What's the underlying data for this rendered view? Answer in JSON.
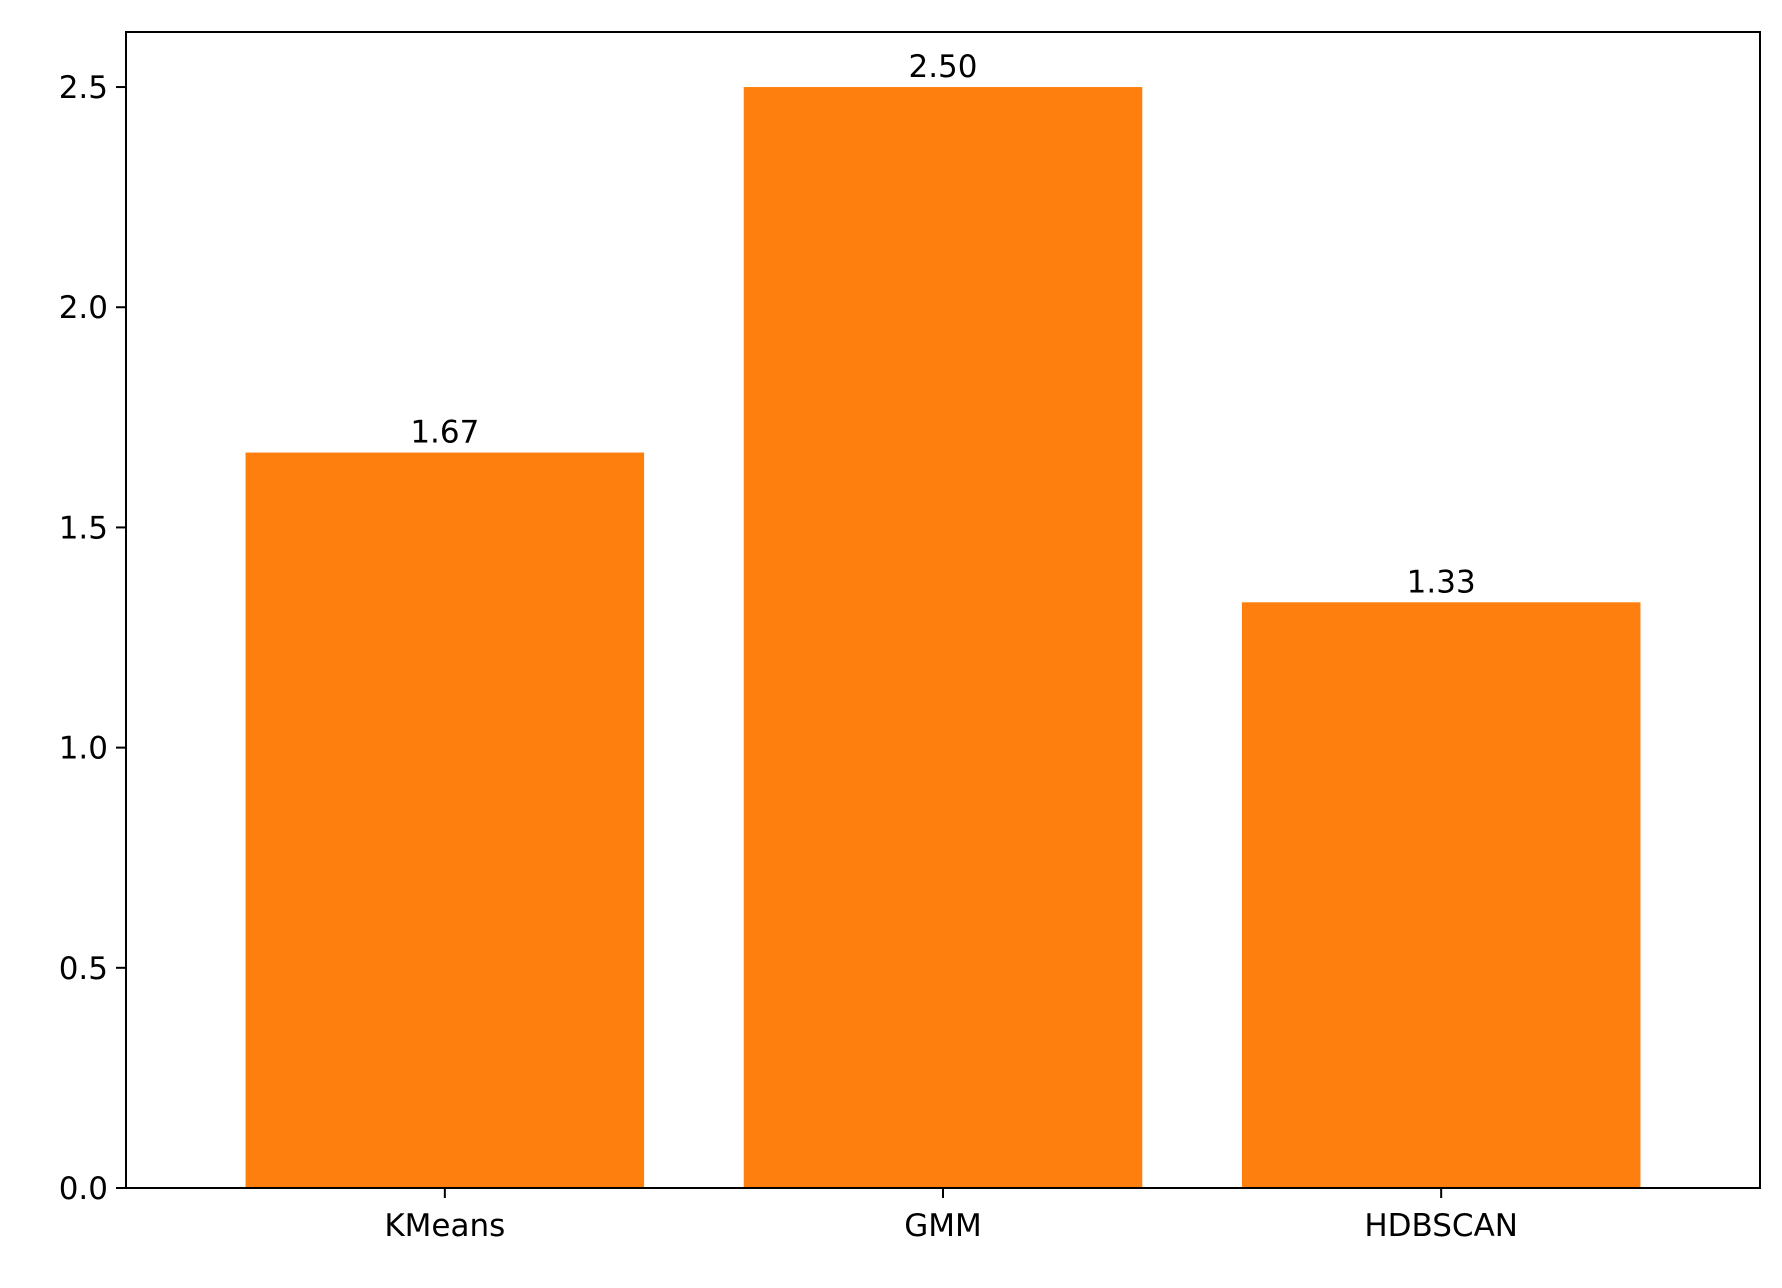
{
  "chart_data": {
    "type": "bar",
    "categories": [
      "KMeans",
      "GMM",
      "HDBSCAN"
    ],
    "values": [
      1.67,
      2.5,
      1.33
    ],
    "data_labels": [
      "1.67",
      "2.50",
      "1.33"
    ],
    "title": "",
    "xlabel": "",
    "ylabel": "",
    "ylim": [
      0,
      2.625
    ],
    "yticks": [
      0.0,
      0.5,
      1.0,
      1.5,
      2.0,
      2.5
    ],
    "ytick_labels": [
      "0.0",
      "0.5",
      "1.0",
      "1.5",
      "2.0",
      "2.5"
    ],
    "grid": false,
    "bar_color": "#ff7f0e",
    "axis_color": "#000000",
    "background_color": "#ffffff"
  }
}
